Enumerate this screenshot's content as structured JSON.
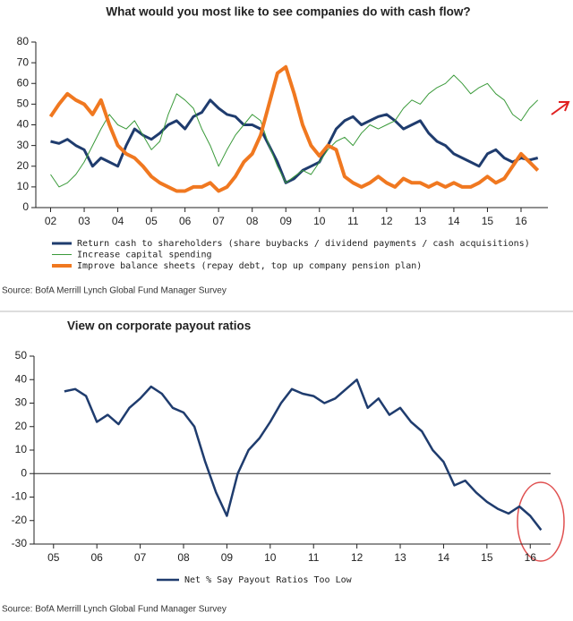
{
  "chart_data": [
    {
      "type": "line",
      "title": "What would you most like to see companies do with cash flow?",
      "source": "Source: BofA Merrill Lynch Global Fund Manager Survey",
      "x": [
        2002,
        2002.25,
        2002.5,
        2002.75,
        2003,
        2003.25,
        2003.5,
        2003.75,
        2004,
        2004.25,
        2004.5,
        2004.75,
        2005,
        2005.25,
        2005.5,
        2005.75,
        2006,
        2006.25,
        2006.5,
        2006.75,
        2007,
        2007.25,
        2007.5,
        2007.75,
        2008,
        2008.25,
        2008.5,
        2008.75,
        2009,
        2009.25,
        2009.5,
        2009.75,
        2010,
        2010.25,
        2010.5,
        2010.75,
        2011,
        2011.25,
        2011.5,
        2011.75,
        2012,
        2012.25,
        2012.5,
        2012.75,
        2013,
        2013.25,
        2013.5,
        2013.75,
        2014,
        2014.25,
        2014.5,
        2014.75,
        2015,
        2015.25,
        2015.5,
        2015.75,
        2016,
        2016.25,
        2016.5
      ],
      "series": [
        {
          "name": "Return cash to shareholders (share buybacks / dividend payments / cash acquisitions)",
          "color": "#1f3c6e",
          "width": 3,
          "values": [
            32,
            31,
            33,
            30,
            28,
            20,
            24,
            22,
            20,
            30,
            38,
            35,
            33,
            36,
            40,
            42,
            38,
            44,
            46,
            52,
            48,
            45,
            44,
            40,
            40,
            38,
            30,
            22,
            12,
            14,
            18,
            20,
            22,
            30,
            38,
            42,
            44,
            40,
            42,
            44,
            45,
            42,
            38,
            40,
            42,
            36,
            32,
            30,
            26,
            24,
            22,
            20,
            26,
            28,
            24,
            22,
            24,
            23,
            24
          ]
        },
        {
          "name": "Increase capital spending",
          "color": "#3a9a3a",
          "width": 1,
          "values": [
            16,
            10,
            12,
            16,
            22,
            30,
            38,
            45,
            40,
            38,
            42,
            35,
            28,
            32,
            45,
            55,
            52,
            48,
            38,
            30,
            20,
            28,
            35,
            40,
            45,
            42,
            30,
            20,
            12,
            15,
            18,
            16,
            22,
            28,
            32,
            34,
            30,
            36,
            40,
            38,
            40,
            42,
            48,
            52,
            50,
            55,
            58,
            60,
            64,
            60,
            55,
            58,
            60,
            55,
            52,
            45,
            42,
            48,
            52
          ]
        },
        {
          "name": "Improve balance sheets (repay debt, top up company pension plan)",
          "color": "#f07820",
          "width": 4,
          "values": [
            44,
            50,
            55,
            52,
            50,
            45,
            52,
            40,
            30,
            26,
            24,
            20,
            15,
            12,
            10,
            8,
            8,
            10,
            10,
            12,
            8,
            10,
            15,
            22,
            26,
            35,
            50,
            65,
            68,
            55,
            40,
            30,
            25,
            30,
            28,
            15,
            12,
            10,
            12,
            15,
            12,
            10,
            14,
            12,
            12,
            10,
            12,
            10,
            12,
            10,
            10,
            12,
            15,
            12,
            14,
            20,
            26,
            22,
            18
          ]
        }
      ],
      "xlim": [
        2001.56,
        2016.8
      ],
      "xticks": [
        {
          "value": 2002,
          "label": "02"
        },
        {
          "value": 2003,
          "label": "03"
        },
        {
          "value": 2004,
          "label": "04"
        },
        {
          "value": 2005,
          "label": "05"
        },
        {
          "value": 2006,
          "label": "06"
        },
        {
          "value": 2007,
          "label": "07"
        },
        {
          "value": 2008,
          "label": "08"
        },
        {
          "value": 2009,
          "label": "09"
        },
        {
          "value": 2010,
          "label": "10"
        },
        {
          "value": 2011,
          "label": "11"
        },
        {
          "value": 2012,
          "label": "12"
        },
        {
          "value": 2013,
          "label": "13"
        },
        {
          "value": 2014,
          "label": "14"
        },
        {
          "value": 2015,
          "label": "15"
        },
        {
          "value": 2016,
          "label": "16"
        }
      ],
      "ylim": [
        0,
        80
      ],
      "yticks": [
        0,
        10,
        20,
        30,
        40,
        50,
        60,
        70,
        80
      ]
    },
    {
      "type": "line",
      "title": "View on corporate payout ratios",
      "source": "Source: BofA Merrill Lynch Global Fund Manager Survey",
      "x": [
        2005.25,
        2005.5,
        2005.75,
        2006,
        2006.25,
        2006.5,
        2006.75,
        2007,
        2007.25,
        2007.5,
        2007.75,
        2008,
        2008.25,
        2008.5,
        2008.75,
        2009,
        2009.25,
        2009.5,
        2009.75,
        2010,
        2010.25,
        2010.5,
        2010.75,
        2011,
        2011.25,
        2011.5,
        2011.75,
        2012,
        2012.25,
        2012.5,
        2012.75,
        2013,
        2013.25,
        2013.5,
        2013.75,
        2014,
        2014.25,
        2014.5,
        2014.75,
        2015,
        2015.25,
        2015.5,
        2015.75,
        2016,
        2016.25
      ],
      "series": [
        {
          "name": "Net % Say Payout Ratios Too Low",
          "color": "#1f3c6e",
          "width": 2.5,
          "values": [
            35,
            36,
            33,
            22,
            25,
            21,
            28,
            32,
            37,
            34,
            28,
            26,
            20,
            5,
            -8,
            -18,
            0,
            10,
            15,
            22,
            30,
            36,
            34,
            33,
            30,
            32,
            36,
            40,
            28,
            32,
            25,
            28,
            22,
            18,
            10,
            5,
            -5,
            -3,
            -8,
            -12,
            -15,
            -17,
            -14,
            -18,
            -24
          ]
        }
      ],
      "xlim": [
        2004.55,
        2016.47
      ],
      "xticks": [
        {
          "value": 2005,
          "label": "05"
        },
        {
          "value": 2006,
          "label": "06"
        },
        {
          "value": 2007,
          "label": "07"
        },
        {
          "value": 2008,
          "label": "08"
        },
        {
          "value": 2009,
          "label": "09"
        },
        {
          "value": 2010,
          "label": "10"
        },
        {
          "value": 2011,
          "label": "11"
        },
        {
          "value": 2012,
          "label": "12"
        },
        {
          "value": 2013,
          "label": "13"
        },
        {
          "value": 2014,
          "label": "14"
        },
        {
          "value": 2015,
          "label": "15"
        },
        {
          "value": 2016,
          "label": "16"
        }
      ],
      "ylim": [
        -30,
        50
      ],
      "yticks": [
        -30,
        -20,
        -10,
        0,
        10,
        20,
        30,
        40,
        50
      ],
      "zero_line": true
    }
  ]
}
